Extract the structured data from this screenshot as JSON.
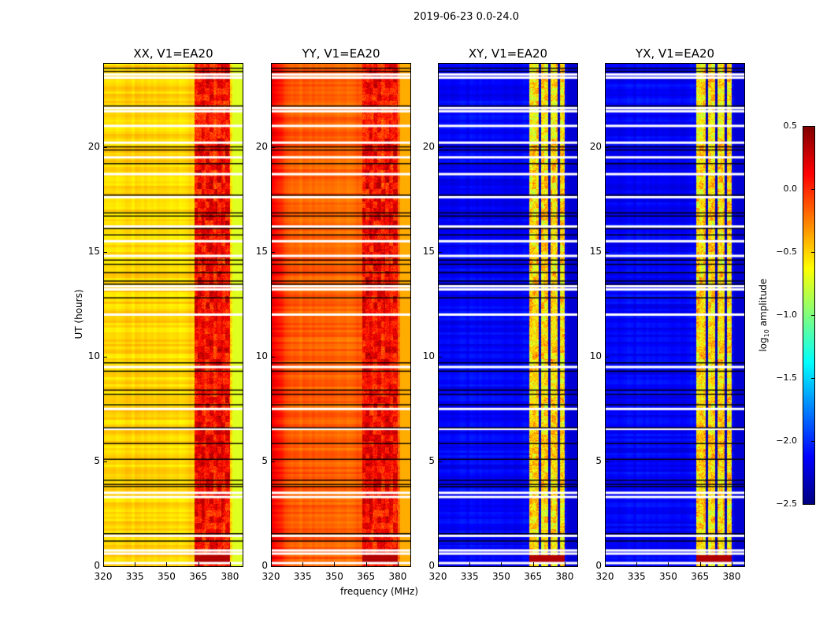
{
  "suptitle": "2019-06-23 0.0-24.0",
  "chart_data": {
    "type": "heatmap",
    "xlabel": "frequency (MHz)",
    "ylabel": "UT (hours)",
    "xlim": [
      320,
      386
    ],
    "ylim": [
      0,
      24
    ],
    "xticks": [
      "320",
      "335",
      "350",
      "365",
      "380"
    ],
    "xtick_values": [
      320,
      335,
      350,
      365,
      380
    ],
    "yticks": [
      "0",
      "5",
      "10",
      "15",
      "20"
    ],
    "ytick_values": [
      0,
      5,
      10,
      15,
      20
    ],
    "rfi_band_mhz": [
      363,
      380
    ],
    "rfi_dark_lines_mhz": [
      368,
      372.5,
      377
    ],
    "flagged_white_hours": [
      0.15,
      0.6,
      0.75,
      1.45,
      3.3,
      3.5,
      6.55,
      7.5,
      9.5,
      12.0,
      13.2,
      13.35,
      14.8,
      15.5,
      16.2,
      17.6,
      18.7,
      19.5,
      20.2,
      21.0,
      21.7,
      21.85,
      23.3,
      23.45
    ],
    "flagged_black_hours": [
      1.2,
      1.55,
      3.8,
      3.9,
      4.1,
      5.1,
      5.85,
      6.6,
      7.7,
      8.2,
      8.4,
      9.3,
      9.7,
      12.8,
      13.45,
      13.6,
      14.0,
      14.4,
      14.6,
      15.8,
      16.1,
      16.7,
      16.85,
      17.7,
      19.2,
      19.85,
      20.0,
      21.95,
      23.6,
      23.75
    ],
    "panels": [
      {
        "title": "XX, V1=EA20",
        "base": -0.62,
        "rfi": -0.05,
        "edge_rise": 0.0,
        "block_0_5h": 0.35
      },
      {
        "title": "YY, V1=EA20",
        "base": -0.28,
        "rfi": -0.05,
        "edge_rise": -0.35,
        "block_0_5h": 0.35
      },
      {
        "title": "XY, V1=EA20",
        "base": -2.25,
        "rfi": -0.8,
        "edge_rise": 0.0,
        "block_0_5h": 0.35
      },
      {
        "title": "YX, V1=EA20",
        "base": -2.25,
        "rfi": -0.8,
        "edge_rise": 0.0,
        "block_0_5h": 0.35
      }
    ],
    "colorbar": {
      "label": "log10 amplitude",
      "label_main": "log",
      "label_sub": "10",
      "label_rest": " amplitude",
      "range": [
        -2.5,
        0.5
      ],
      "colormap": "jet",
      "ticks": [
        "0.5",
        "0.0",
        "−0.5",
        "−1.0",
        "−1.5",
        "−2.0",
        "−2.5"
      ],
      "tick_values": [
        0.5,
        0.0,
        -0.5,
        -1.0,
        -1.5,
        -2.0,
        -2.5
      ]
    }
  }
}
